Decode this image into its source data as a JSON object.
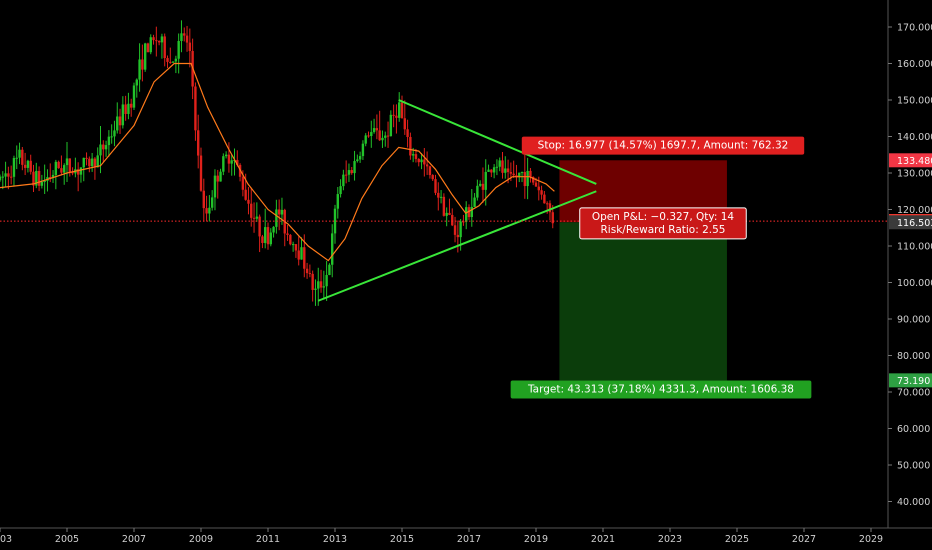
{
  "chart_data": {
    "type": "candlestick",
    "x_axis": {
      "ticks": [
        "03",
        "2005",
        "2007",
        "2009",
        "2011",
        "2013",
        "2015",
        "2017",
        "2019",
        "2021",
        "2023",
        "2025",
        "2027",
        "2029"
      ],
      "range": [
        2003,
        2030
      ]
    },
    "y_axis": {
      "ticks": [
        "170.000",
        "160.000",
        "150.000",
        "140.000",
        "130.000",
        "120.000",
        "110.000",
        "100.000",
        "90.000",
        "80.000",
        "70.000",
        "60.000",
        "50.000",
        "40.000"
      ],
      "ylim": [
        35,
        174
      ],
      "position": "right"
    },
    "price_path": [
      [
        2003.0,
        128
      ],
      [
        2003.6,
        134
      ],
      [
        2004.2,
        127
      ],
      [
        2004.8,
        132
      ],
      [
        2005.3,
        131
      ],
      [
        2005.9,
        134
      ],
      [
        2006.4,
        142
      ],
      [
        2006.9,
        150
      ],
      [
        2007.3,
        163
      ],
      [
        2007.7,
        167
      ],
      [
        2008.1,
        160
      ],
      [
        2008.5,
        168
      ],
      [
        2008.7,
        160
      ],
      [
        2008.9,
        135
      ],
      [
        2009.1,
        117
      ],
      [
        2009.5,
        130
      ],
      [
        2009.9,
        136
      ],
      [
        2010.3,
        125
      ],
      [
        2010.7,
        115
      ],
      [
        2011.0,
        112
      ],
      [
        2011.3,
        120
      ],
      [
        2011.6,
        113
      ],
      [
        2012.0,
        108
      ],
      [
        2012.4,
        97
      ],
      [
        2012.8,
        103
      ],
      [
        2013.1,
        126
      ],
      [
        2013.6,
        133
      ],
      [
        2014.0,
        141
      ],
      [
        2014.5,
        140
      ],
      [
        2014.9,
        149
      ],
      [
        2015.2,
        136
      ],
      [
        2015.6,
        133
      ],
      [
        2016.0,
        126
      ],
      [
        2016.3,
        120
      ],
      [
        2016.6,
        113
      ],
      [
        2017.0,
        120
      ],
      [
        2017.4,
        128
      ],
      [
        2017.8,
        133
      ],
      [
        2018.2,
        128
      ],
      [
        2018.6,
        130
      ],
      [
        2019.0,
        127
      ],
      [
        2019.3,
        122
      ],
      [
        2019.45,
        118
      ],
      [
        2019.55,
        116.8
      ]
    ],
    "moving_average": [
      [
        2003.0,
        126
      ],
      [
        2004.0,
        127
      ],
      [
        2005.0,
        130
      ],
      [
        2006.0,
        132
      ],
      [
        2007.0,
        143
      ],
      [
        2007.6,
        155
      ],
      [
        2008.2,
        160
      ],
      [
        2008.7,
        160
      ],
      [
        2009.2,
        148
      ],
      [
        2009.8,
        137
      ],
      [
        2010.4,
        127
      ],
      [
        2011.0,
        120
      ],
      [
        2011.6,
        116
      ],
      [
        2012.2,
        110
      ],
      [
        2012.8,
        106
      ],
      [
        2013.3,
        112
      ],
      [
        2013.8,
        123
      ],
      [
        2014.4,
        132
      ],
      [
        2014.9,
        137
      ],
      [
        2015.5,
        136
      ],
      [
        2016.0,
        131
      ],
      [
        2016.5,
        124
      ],
      [
        2016.9,
        119
      ],
      [
        2017.3,
        121
      ],
      [
        2017.8,
        126
      ],
      [
        2018.3,
        129
      ],
      [
        2018.8,
        129
      ],
      [
        2019.3,
        127
      ],
      [
        2019.55,
        125
      ]
    ],
    "trendlines": [
      {
        "from": [
          2014.9,
          150
        ],
        "to": [
          2020.8,
          127
        ]
      },
      {
        "from": [
          2012.5,
          95
        ],
        "to": [
          2020.8,
          125
        ]
      }
    ],
    "price_line": 116.83,
    "position": {
      "stop_zone": {
        "x_start": 2019.7,
        "x_end": 2024.7,
        "y_top": 133.48,
        "y_bottom": 116.503
      },
      "target_zone": {
        "x_start": 2019.7,
        "x_end": 2024.7,
        "y_top": 116.503,
        "y_bottom": 73.19
      }
    },
    "labels": {
      "stop": "Stop: 16.977 (14.57%) 1697.7, Amount: 762.32",
      "open_line1": "Open P&L: −0.327, Qty: 14",
      "open_line2": "Risk/Reward Ratio: 2.55",
      "target": "Target: 43.313 (37.18%) 4331.3, Amount: 1606.38"
    },
    "price_tags": [
      {
        "value": 133.48,
        "text": "133.480",
        "bg": "#f23645",
        "fg": "#ffffff"
      },
      {
        "value": 116.83,
        "text": "116.830",
        "bg": "#ff3b30",
        "fg": "#ffffff"
      },
      {
        "value": 116.503,
        "text": "116.503",
        "bg": "#3a3a3a",
        "fg": "#ffffff"
      },
      {
        "value": 73.19,
        "text": "73.190",
        "bg": "#2ea043",
        "fg": "#ffffff"
      }
    ],
    "colors": {
      "background": "#000000",
      "up_candle": "#22c32a",
      "down_candle": "#e0211b",
      "moving_average": "#ff7a1a",
      "trendline": "#39e639",
      "stop_zone": "#6e0000",
      "target_zone": "#0b3d0b",
      "price_line": "#ff2a2a",
      "stop_label": "#e02020",
      "target_label": "#21a121"
    }
  }
}
